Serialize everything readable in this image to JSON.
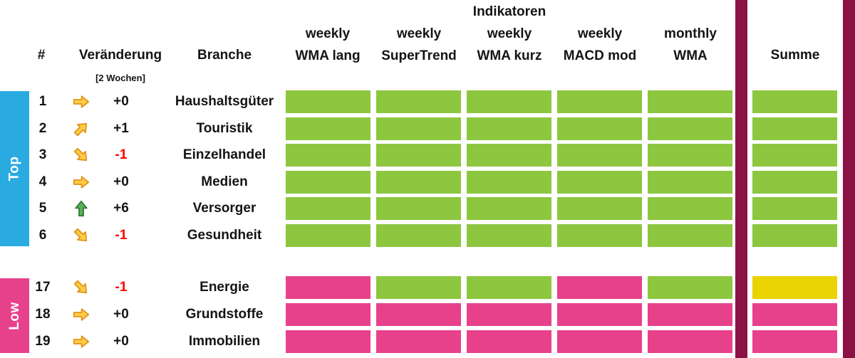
{
  "colors": {
    "green": "#8DC63F",
    "pink": "#E8418C",
    "yellow": "#E9D300",
    "maroon": "#8C1144",
    "cyan": "#29ABE2",
    "red_text": "#FF0000",
    "text": "#141414",
    "arrow_yellow_fill": "#FFCC44",
    "arrow_yellow_stroke": "#E0941B",
    "arrow_green_fill": "#5BAD5C",
    "arrow_green_stroke": "#2E7D33"
  },
  "header": {
    "indikatoren": "Indikatoren",
    "hash": "#",
    "veraenderung": "Veränderung",
    "veraenderung_sub": "[2 Wochen]",
    "branche": "Branche",
    "summe": "Summe",
    "columns": [
      {
        "line1": "weekly",
        "line2": "WMA lang"
      },
      {
        "line1": "weekly",
        "line2": "SuperTrend"
      },
      {
        "line1": "weekly",
        "line2": "WMA kurz"
      },
      {
        "line1": "weekly",
        "line2": "MACD mod"
      },
      {
        "line1": "monthly",
        "line2": "WMA"
      }
    ]
  },
  "groups": {
    "top": {
      "label": "Top"
    },
    "low": {
      "label": "Low"
    }
  },
  "chart_data": {
    "type": "heatmap",
    "title": "Indikatoren",
    "columns": [
      "weekly WMA lang",
      "weekly SuperTrend",
      "weekly WMA kurz",
      "weekly MACD mod",
      "monthly WMA",
      "Summe"
    ],
    "cell_states": {
      "green": "positive",
      "pink": "negative",
      "yellow": "neutral"
    },
    "rows": [
      {
        "rank": "1",
        "group": "top",
        "trend": "right",
        "change": "+0",
        "branche": "Haushaltsgüter",
        "cells": [
          "green",
          "green",
          "green",
          "green",
          "green"
        ],
        "summe": "green"
      },
      {
        "rank": "2",
        "group": "top",
        "trend": "up-right",
        "change": "+1",
        "branche": "Touristik",
        "cells": [
          "green",
          "green",
          "green",
          "green",
          "green"
        ],
        "summe": "green"
      },
      {
        "rank": "3",
        "group": "top",
        "trend": "down-right",
        "change": "-1",
        "branche": "Einzelhandel",
        "cells": [
          "green",
          "green",
          "green",
          "green",
          "green"
        ],
        "summe": "green"
      },
      {
        "rank": "4",
        "group": "top",
        "trend": "right",
        "change": "+0",
        "branche": "Medien",
        "cells": [
          "green",
          "green",
          "green",
          "green",
          "green"
        ],
        "summe": "green"
      },
      {
        "rank": "5",
        "group": "top",
        "trend": "up",
        "change": "+6",
        "branche": "Versorger",
        "cells": [
          "green",
          "green",
          "green",
          "green",
          "green"
        ],
        "summe": "green"
      },
      {
        "rank": "6",
        "group": "top",
        "trend": "down-right",
        "change": "-1",
        "branche": "Gesundheit",
        "cells": [
          "green",
          "green",
          "green",
          "green",
          "green"
        ],
        "summe": "green"
      },
      {
        "rank": "17",
        "group": "low",
        "trend": "down-right",
        "change": "-1",
        "branche": "Energie",
        "cells": [
          "pink",
          "green",
          "green",
          "pink",
          "green"
        ],
        "summe": "yellow"
      },
      {
        "rank": "18",
        "group": "low",
        "trend": "right",
        "change": "+0",
        "branche": "Grundstoffe",
        "cells": [
          "pink",
          "pink",
          "pink",
          "pink",
          "pink"
        ],
        "summe": "pink"
      },
      {
        "rank": "19",
        "group": "low",
        "trend": "right",
        "change": "+0",
        "branche": "Immobilien",
        "cells": [
          "pink",
          "pink",
          "pink",
          "pink",
          "pink"
        ],
        "summe": "pink"
      }
    ]
  }
}
